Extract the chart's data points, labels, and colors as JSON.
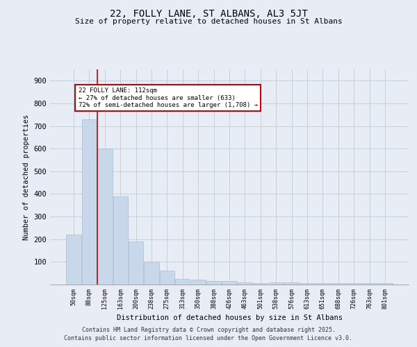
{
  "title_line1": "22, FOLLY LANE, ST ALBANS, AL3 5JT",
  "title_line2": "Size of property relative to detached houses in St Albans",
  "xlabel": "Distribution of detached houses by size in St Albans",
  "ylabel": "Number of detached properties",
  "categories": [
    "50sqm",
    "88sqm",
    "125sqm",
    "163sqm",
    "200sqm",
    "238sqm",
    "275sqm",
    "313sqm",
    "350sqm",
    "388sqm",
    "426sqm",
    "463sqm",
    "501sqm",
    "538sqm",
    "576sqm",
    "613sqm",
    "651sqm",
    "688sqm",
    "726sqm",
    "763sqm",
    "801sqm"
  ],
  "values": [
    220,
    730,
    600,
    390,
    190,
    100,
    60,
    25,
    20,
    15,
    15,
    10,
    5,
    10,
    10,
    5,
    5,
    5,
    5,
    5,
    5
  ],
  "bar_color": "#c8d8ea",
  "bar_edge_color": "#a8bece",
  "red_line_x": 1.5,
  "annotation_text": "22 FOLLY LANE: 112sqm\n← 27% of detached houses are smaller (633)\n72% of semi-detached houses are larger (1,708) →",
  "annotation_box_color": "#ffffff",
  "annotation_border_color": "#cc0000",
  "red_line_color": "#cc0000",
  "grid_color": "#c0cad8",
  "background_color": "#e8edf5",
  "footer_line1": "Contains HM Land Registry data © Crown copyright and database right 2025.",
  "footer_line2": "Contains public sector information licensed under the Open Government Licence v3.0.",
  "ylim": [
    0,
    950
  ],
  "yticks": [
    0,
    100,
    200,
    300,
    400,
    500,
    600,
    700,
    800,
    900
  ]
}
